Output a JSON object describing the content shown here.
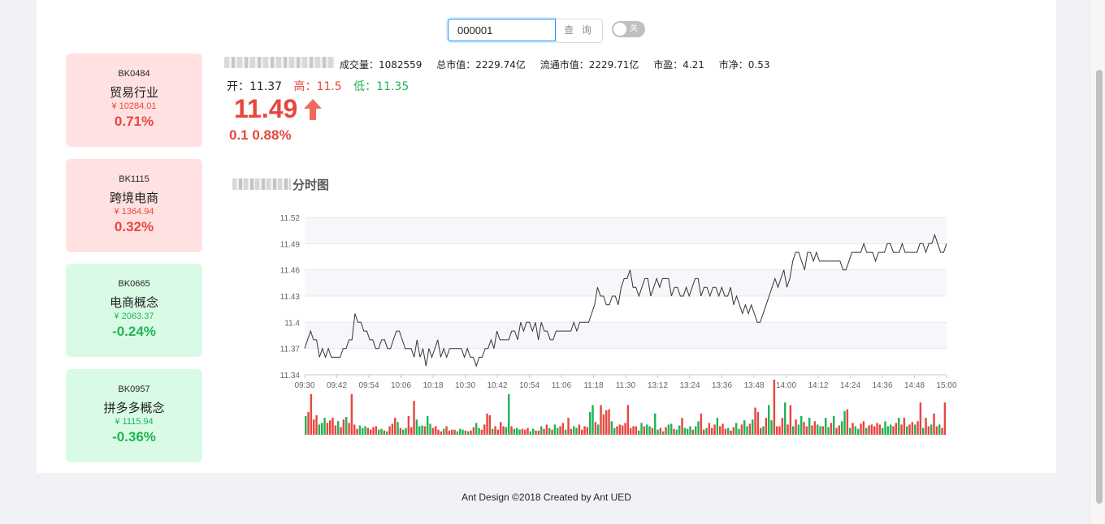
{
  "search": {
    "value": "000001",
    "button_label": "查 询"
  },
  "toggle": {
    "label": "关",
    "on": false
  },
  "sectors": [
    {
      "code": "BK0484",
      "name": "贸易行业",
      "price": "¥ 10284.01",
      "pct": "0.71%",
      "trend": "up"
    },
    {
      "code": "BK1115",
      "name": "跨境电商",
      "price": "¥ 1364.94",
      "pct": "0.32%",
      "trend": "up"
    },
    {
      "code": "BK0665",
      "name": "电商概念",
      "price": "¥ 2063.37",
      "pct": "-0.24%",
      "trend": "down"
    },
    {
      "code": "BK0957",
      "name": "拼多多概念",
      "price": "¥ 1115.94",
      "pct": "-0.36%",
      "trend": "down"
    }
  ],
  "quote": {
    "stats": {
      "volume": "成交量：1082559",
      "market_cap": "总市值：2229.74亿",
      "float_cap": "流通市值：2229.71亿",
      "pe": "市盈：4.21",
      "pb": "市净：0.53"
    },
    "open": "开：11.37",
    "high": "高：11.5",
    "low": "低：11.35",
    "price": "11.49",
    "change": "0.1 0.88%"
  },
  "chart_title_suffix": "分时图",
  "colors": {
    "up": "#e8463e",
    "down": "#20b456",
    "accent": "#1890ff"
  },
  "chart_data": {
    "type": "line",
    "yticks": [
      "11.52",
      "11.49",
      "11.46",
      "11.43",
      "11.4",
      "11.37",
      "11.34"
    ],
    "ylim": [
      11.34,
      11.52
    ],
    "xticks": [
      "09:30",
      "09:42",
      "09:54",
      "10:06",
      "10:18",
      "10:30",
      "10:42",
      "10:54",
      "11:06",
      "11:18",
      "11:30",
      "13:12",
      "13:24",
      "13:36",
      "13:48",
      "14:00",
      "14:12",
      "14:24",
      "14:36",
      "14:48",
      "15:00"
    ],
    "series": [
      {
        "values": [
          11.37,
          11.38,
          11.39,
          11.38,
          11.38,
          11.36,
          11.37,
          11.36,
          11.37,
          11.36,
          11.36,
          11.36,
          11.36,
          11.37,
          11.37,
          11.38,
          11.38,
          11.41,
          11.4,
          11.4,
          11.39,
          11.39,
          11.38,
          11.38,
          11.37,
          11.37,
          11.38,
          11.38,
          11.37,
          11.37,
          11.38,
          11.39,
          11.39,
          11.38,
          11.37,
          11.37,
          11.37,
          11.36,
          11.38,
          11.36,
          11.37,
          11.35,
          11.37,
          11.36,
          11.37,
          11.38,
          11.36,
          11.37,
          11.36,
          11.37,
          11.37,
          11.37,
          11.37,
          11.37,
          11.36,
          11.37,
          11.36,
          11.36,
          11.35,
          11.36,
          11.36,
          11.37,
          11.37,
          11.38,
          11.37,
          11.39,
          11.38,
          11.38,
          11.38,
          11.38,
          11.39,
          11.39,
          11.38,
          11.4,
          11.39,
          11.4,
          11.4,
          11.39,
          11.4,
          11.38,
          11.4,
          11.39,
          11.39,
          11.38,
          11.38,
          11.39,
          11.39,
          11.39,
          11.39,
          11.39,
          11.39,
          11.4,
          11.39,
          11.4,
          11.4,
          11.4,
          11.4,
          11.41,
          11.42,
          11.44,
          11.43,
          11.43,
          11.42,
          11.42,
          11.43,
          11.43,
          11.42,
          11.44,
          11.45,
          11.45,
          11.46,
          11.44,
          11.44,
          11.43,
          11.44,
          11.45,
          11.45,
          11.43,
          11.44,
          11.45,
          11.44,
          11.45,
          11.45,
          11.45,
          11.43,
          11.44,
          11.44,
          11.43,
          11.43,
          11.44,
          11.43,
          11.44,
          11.45,
          11.45,
          11.43,
          11.44,
          11.44,
          11.43,
          11.44,
          11.44,
          11.43,
          11.44,
          11.43,
          11.43,
          11.44,
          11.42,
          11.43,
          11.42,
          11.41,
          11.42,
          11.41,
          11.42,
          11.41,
          11.4,
          11.4,
          11.41,
          11.42,
          11.43,
          11.44,
          11.45,
          11.44,
          11.45,
          11.46,
          11.44,
          11.45,
          11.47,
          11.48,
          11.48,
          11.47,
          11.46,
          11.48,
          11.48,
          11.47,
          11.48,
          11.47,
          11.47,
          11.47,
          11.47,
          11.47,
          11.47,
          11.47,
          11.47,
          11.46,
          11.46,
          11.47,
          11.48,
          11.48,
          11.48,
          11.48,
          11.49,
          11.48,
          11.48,
          11.48,
          11.47,
          11.48,
          11.48,
          11.48,
          11.49,
          11.49,
          11.48,
          11.48,
          11.48,
          11.49,
          11.48,
          11.48,
          11.48,
          11.48,
          11.48,
          11.49,
          11.49,
          11.48,
          11.49,
          11.49,
          11.5,
          11.49,
          11.48,
          11.48,
          11.49
        ]
      }
    ],
    "volume": {
      "values": [
        22,
        27,
        48,
        18,
        23,
        12,
        14,
        20,
        14,
        17,
        20,
        11,
        16,
        9,
        18,
        21,
        14,
        48,
        12,
        7,
        11,
        8,
        10,
        8,
        6,
        9,
        10,
        6,
        7,
        5,
        4,
        10,
        13,
        20,
        15,
        8,
        6,
        8,
        22,
        9,
        40,
        18,
        10,
        11,
        10,
        22,
        13,
        8,
        10,
        6,
        4,
        7,
        10,
        5,
        6,
        6,
        4,
        7,
        6,
        5,
        4,
        5,
        9,
        14,
        8,
        6,
        12,
        25,
        23,
        7,
        10,
        6,
        15,
        10,
        9,
        48,
        10,
        7,
        8,
        6,
        7,
        6,
        8,
        4,
        7,
        5,
        5,
        10,
        7,
        12,
        8,
        6,
        12,
        8,
        10,
        14,
        6,
        20,
        7,
        10,
        8,
        12,
        6,
        10,
        9,
        27,
        35,
        15,
        12,
        35,
        24,
        29,
        30,
        16,
        8,
        10,
        12,
        11,
        14,
        35,
        8,
        10,
        10,
        5,
        14,
        10,
        12,
        10,
        8,
        25,
        6,
        8,
        4,
        9,
        12,
        13,
        7,
        6,
        11,
        20,
        8,
        7,
        10,
        6,
        10,
        16,
        25,
        6,
        8,
        14,
        8,
        12,
        20,
        10,
        13,
        7,
        8,
        5,
        9,
        14,
        7,
        12,
        17,
        10,
        13,
        18,
        32,
        27,
        8,
        10,
        20,
        35,
        17,
        65,
        10,
        10,
        20,
        38,
        12,
        35,
        10,
        18,
        12,
        22,
        15,
        10,
        20,
        11,
        16,
        12,
        10,
        10,
        20,
        9,
        14,
        22,
        8,
        11,
        16,
        28,
        30,
        8,
        14,
        10,
        7,
        13,
        16,
        8,
        11,
        12,
        10,
        14,
        12,
        8,
        16,
        10,
        12,
        10,
        14,
        20,
        12,
        20,
        10,
        12,
        15,
        12,
        16,
        38,
        8,
        20,
        10,
        12,
        25,
        10,
        12,
        8,
        38
      ],
      "colors": "mixed red/green"
    }
  },
  "footer": "Ant Design ©2018 Created by Ant UED"
}
